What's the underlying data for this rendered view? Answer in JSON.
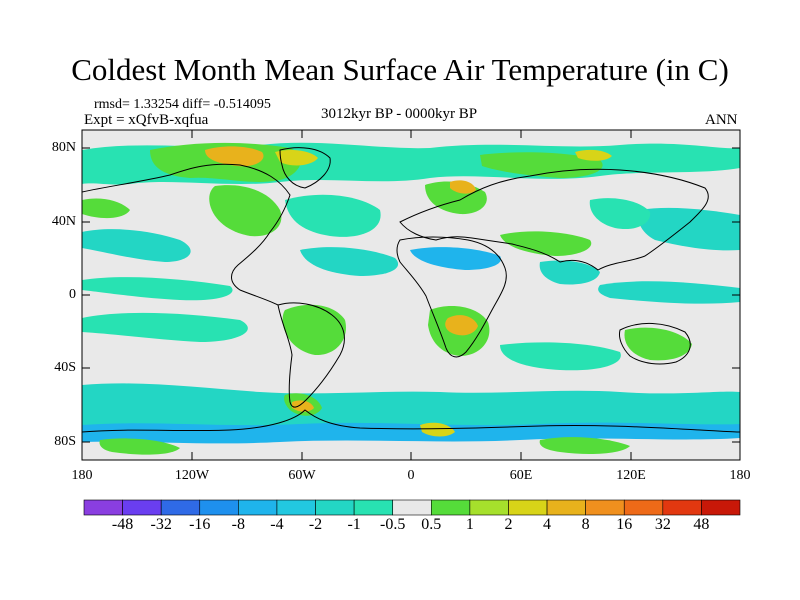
{
  "title": "Coldest Month Mean Surface Air Temperature (in C)",
  "stats": "rmsd= 1.33254 diff= -0.514095",
  "experiment": "Expt = xQfvB-xqfua",
  "period": "3012kyr BP - 0000kyr BP",
  "season": "ANN",
  "y_axis_labels": [
    "80N",
    "40N",
    "0",
    "40S",
    "80S"
  ],
  "x_axis_labels": [
    "180",
    "120W",
    "60W",
    "0",
    "60E",
    "120E",
    "180"
  ],
  "colorbar": {
    "labels": [
      "-48",
      "-32",
      "-16",
      "-8",
      "-4",
      "-2",
      "-1",
      "-0.5",
      "0.5",
      "1",
      "2",
      "4",
      "8",
      "16",
      "32",
      "48"
    ],
    "colors": [
      "#8a3ee0",
      "#6a3ef0",
      "#2f6ae6",
      "#1e90ee",
      "#1fb4ec",
      "#22c8e0",
      "#23d6c4",
      "#28e2b2",
      "#e9e9e9",
      "#55dc3a",
      "#a6e02c",
      "#d8d418",
      "#e8b21c",
      "#f0901e",
      "#ee6a18",
      "#e23810",
      "#c81808"
    ]
  },
  "colors": {
    "neutral": "#e9e9e9",
    "cool": "#28e2b2",
    "cooler": "#23d6c4",
    "cold": "#22c8e0",
    "colder": "#1fb4ec",
    "warm": "#55dc3a",
    "warmer": "#a6e02c",
    "hot": "#d8d418",
    "hotter": "#e8b21c"
  }
}
